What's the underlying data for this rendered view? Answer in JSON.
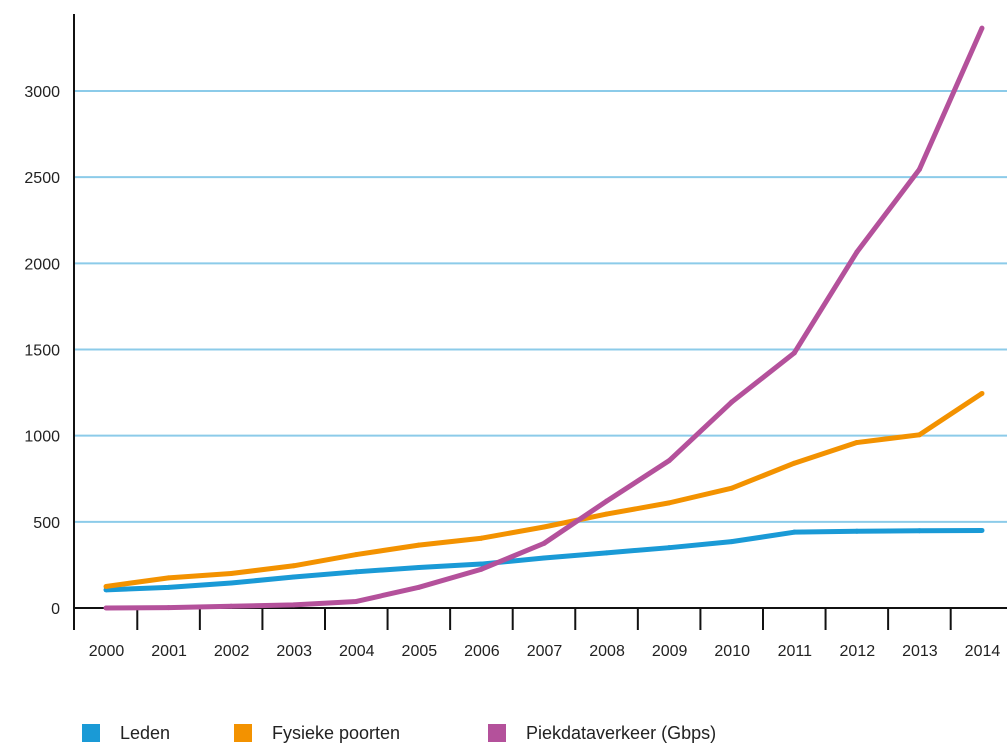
{
  "chart_data": {
    "type": "line",
    "title": "",
    "xlabel": "",
    "ylabel": "",
    "x": [
      "2000",
      "2001",
      "2002",
      "2003",
      "2004",
      "2005",
      "2006",
      "2007",
      "2008",
      "2009",
      "2010",
      "2011",
      "2012",
      "2013",
      "2014"
    ],
    "ylim": [
      0,
      3400
    ],
    "yticks": [
      0,
      500,
      1000,
      1500,
      2000,
      2500,
      3000
    ],
    "ytick_labels": [
      "0",
      "500",
      "1000",
      "1500",
      "2000",
      "2500",
      "3000"
    ],
    "grid": "horizontal",
    "legend_position": "bottom",
    "series": [
      {
        "name": "Leden",
        "color": "#1a9ad6",
        "values": [
          105,
          120,
          145,
          180,
          210,
          235,
          255,
          290,
          320,
          350,
          385,
          440,
          445,
          448,
          450
        ]
      },
      {
        "name": "Fysieke poorten",
        "color": "#f39200",
        "values": [
          125,
          175,
          200,
          245,
          310,
          365,
          405,
          470,
          545,
          610,
          695,
          840,
          960,
          1005,
          1245
        ]
      },
      {
        "name": "Piekdataverkeer (Gbps)",
        "color": "#b4519b",
        "values": [
          0,
          2,
          10,
          18,
          38,
          120,
          225,
          375,
          620,
          855,
          1195,
          1480,
          2065,
          2545,
          3365
        ]
      }
    ],
    "axis_color": "#111111",
    "grid_color": "#8ccbe9"
  }
}
